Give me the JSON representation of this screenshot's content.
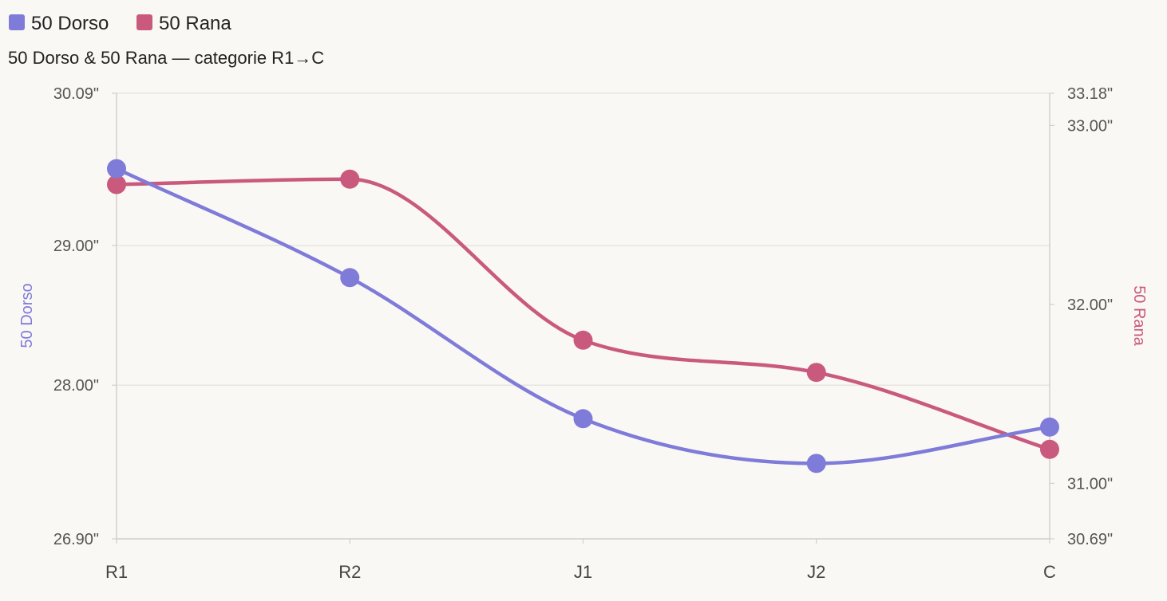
{
  "chart_data": {
    "type": "line",
    "title": "50 Dorso & 50 Rana — categorie R1→C",
    "categories": [
      "R1",
      "R2",
      "J1",
      "J2",
      "C"
    ],
    "series": [
      {
        "name": "50 Dorso",
        "axis": "left",
        "color": "#7f7bd9",
        "values": [
          29.55,
          28.77,
          27.76,
          27.44,
          27.7
        ]
      },
      {
        "name": "50 Rana",
        "axis": "right",
        "color": "#c95a7e",
        "values": [
          32.67,
          32.7,
          31.8,
          31.62,
          31.19
        ]
      }
    ],
    "y_left": {
      "label": "50 Dorso",
      "range": [
        26.9,
        30.09
      ],
      "ticks": [
        "30.09\"",
        "29.00\"",
        "28.00\"",
        "26.90\""
      ],
      "tick_values": [
        30.09,
        29.0,
        28.0,
        26.9
      ]
    },
    "y_right": {
      "label": "50 Rana",
      "range": [
        30.69,
        33.18
      ],
      "ticks": [
        "33.18\"",
        "33.00\"",
        "32.00\"",
        "31.00\"",
        "30.69\""
      ],
      "tick_values": [
        33.18,
        33.0,
        32.0,
        31.0,
        30.69
      ]
    },
    "grid": true,
    "legend_position": "top-left"
  },
  "colors": {
    "grid": "#e4e1dc",
    "axis": "#d2cfc9"
  }
}
